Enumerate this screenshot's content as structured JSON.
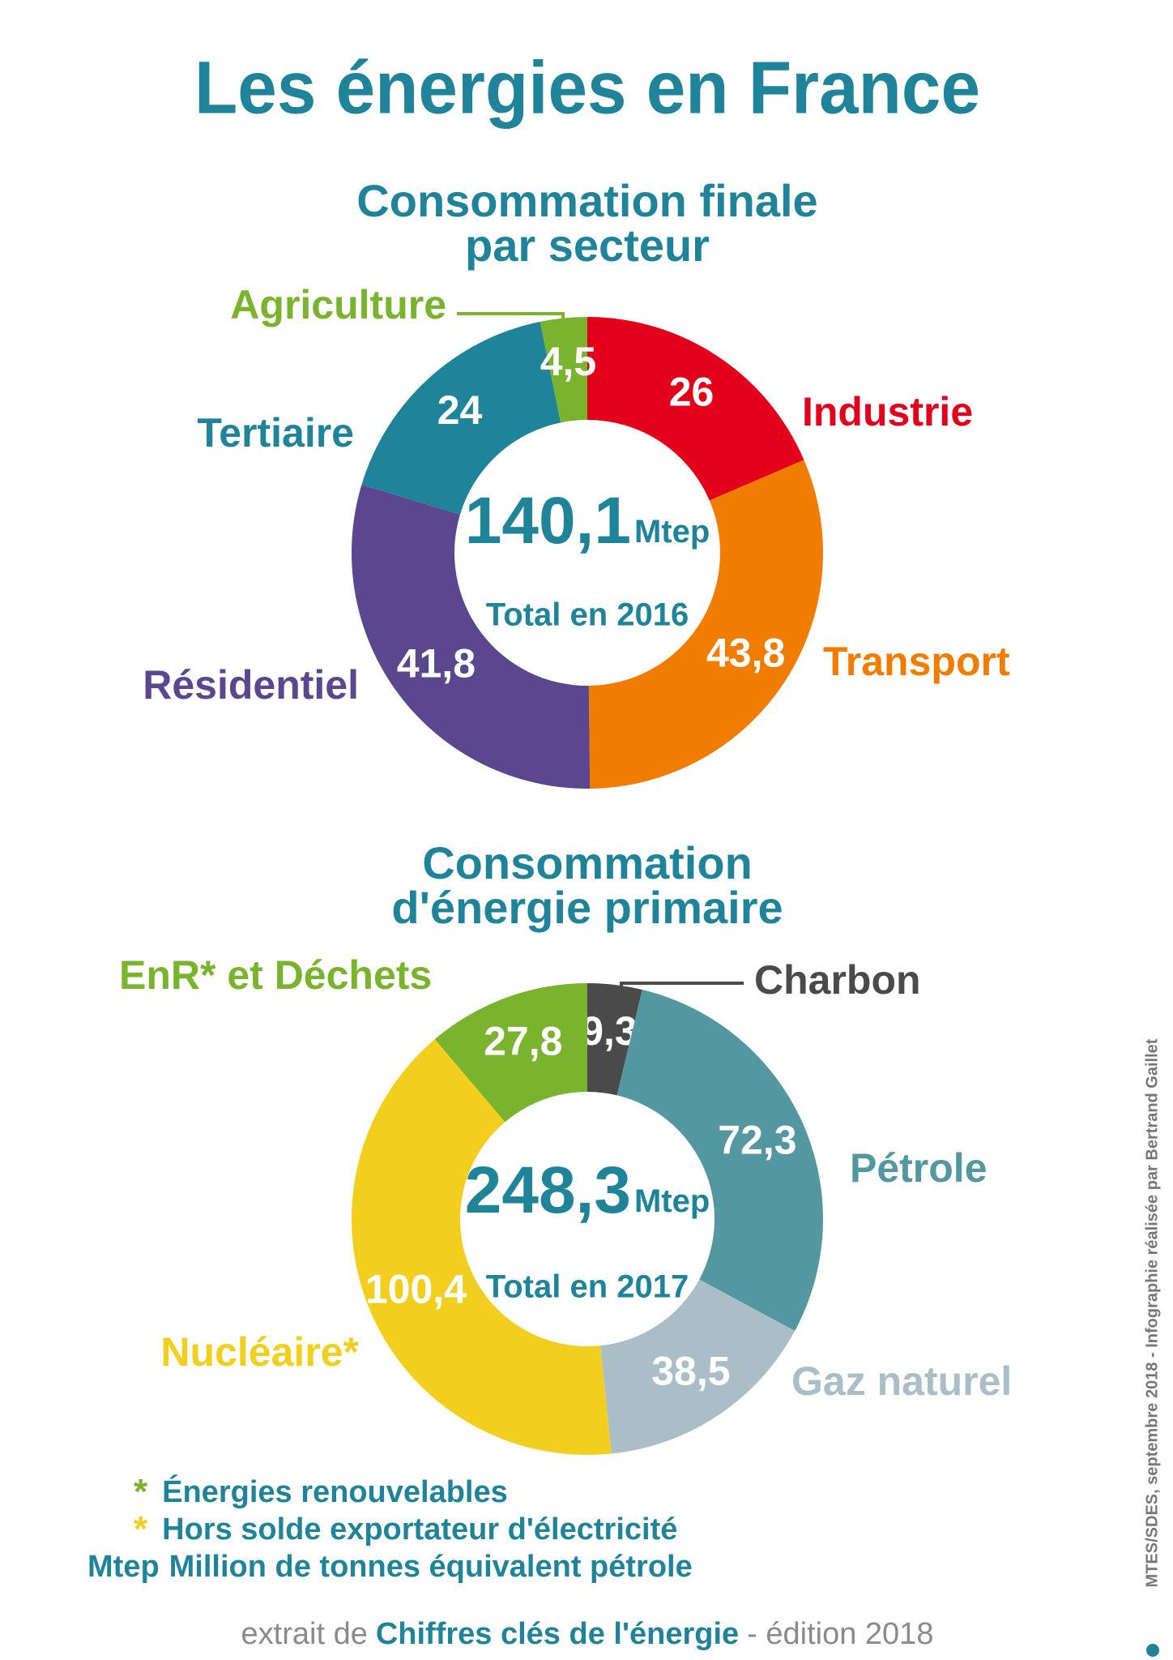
{
  "title": "Les énergies en France",
  "chart_data": [
    {
      "type": "pie",
      "title": [
        "Consommation finale",
        "par secteur"
      ],
      "categories": [
        "Industrie",
        "Transport",
        "Résidentiel",
        "Tertiaire",
        "Agriculture"
      ],
      "values": [
        26,
        43.8,
        41.8,
        24,
        4.5
      ],
      "value_labels": [
        "26",
        "43,8",
        "41,8",
        "24",
        "4,5"
      ],
      "colors": [
        "#e2001a",
        "#f07d00",
        "#5b4690",
        "#1f8499",
        "#7ab32e"
      ],
      "total": {
        "value": 140.1,
        "label": "140,1"
      },
      "total_unit": "Mtep",
      "total_caption": "Total en 2016"
    },
    {
      "type": "pie",
      "title": [
        "Consommation",
        "d'énergie primaire"
      ],
      "categories": [
        "Charbon",
        "Pétrole",
        "Gaz naturel",
        "Nucléaire*",
        "EnR* et Déchets"
      ],
      "values": [
        9.3,
        72.3,
        38.5,
        100.4,
        27.8
      ],
      "value_labels": [
        "9,3",
        "72,3",
        "38,5",
        "100,4",
        "27,8"
      ],
      "colors": [
        "#4a4a4a",
        "#5398a0",
        "#a9bec6",
        "#f2cf1f",
        "#7ab32e"
      ],
      "total": {
        "value": 248.3,
        "label": "248,3"
      },
      "total_unit": "Mtep",
      "total_caption": "Total en 2017"
    }
  ],
  "notes": [
    {
      "marker": "*",
      "text": "Énergies renouvelables"
    },
    {
      "marker": "*",
      "text": "Hors solde exportateur d'électricité"
    },
    {
      "marker": "Mtep",
      "text": "Million de tonnes équivalent pétrole"
    }
  ],
  "source": {
    "prefix": "extrait de",
    "title": "Chiffres clés de l'énergie",
    "suffix": "- édition 2018"
  },
  "credit": "MTES/SDES, septembre 2018 - Infographie réalisée par Bertrand Gaillet"
}
